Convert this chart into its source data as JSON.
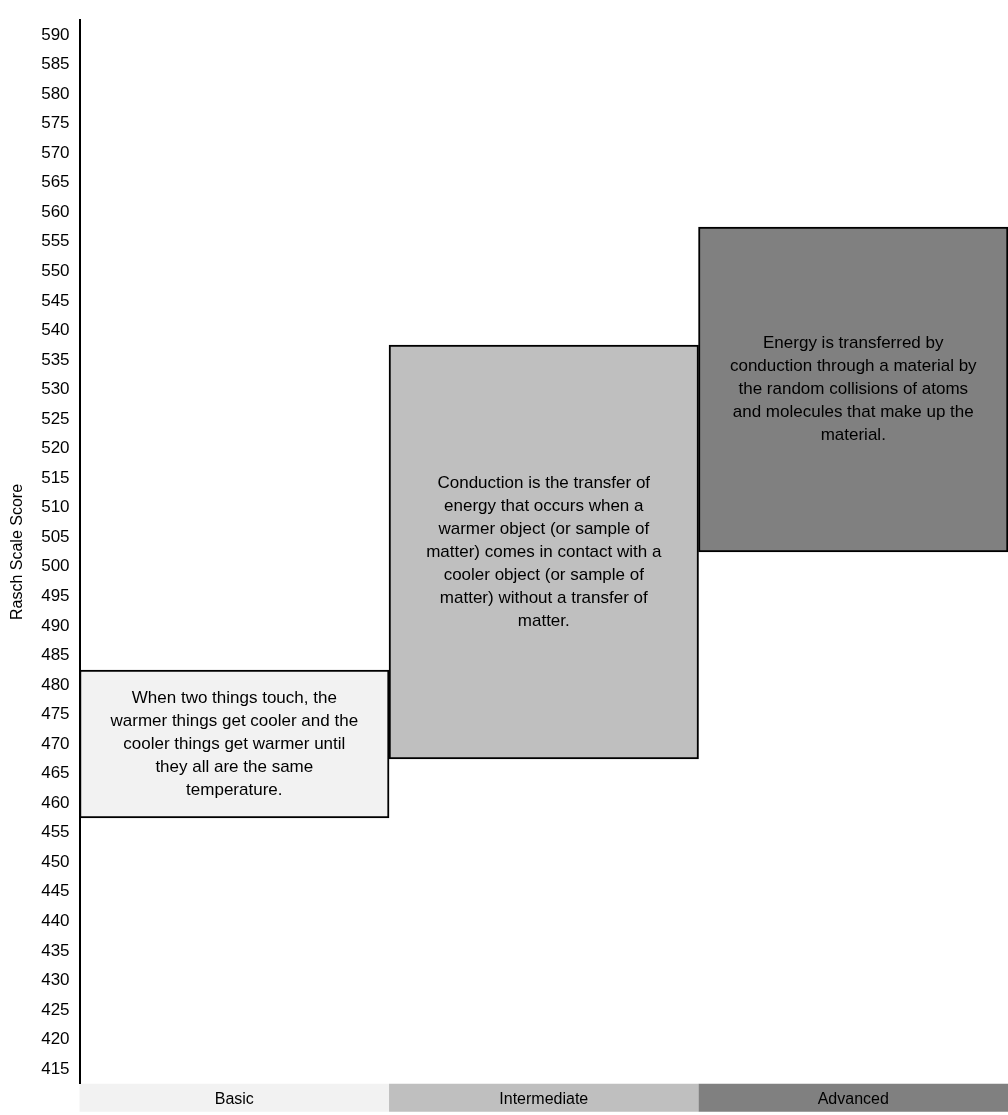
{
  "chart_data": {
    "type": "bar",
    "ylabel": "Rasch Scale Score",
    "categories": [
      "Basic",
      "Intermediate",
      "Advanced"
    ],
    "base": [
      457.5,
      467.5,
      502.5
    ],
    "values": [
      25,
      70,
      55
    ],
    "colors": [
      "#f2f2f2",
      "#bfbfbf",
      "#808080"
    ],
    "ylim": [
      412.5,
      592.5
    ],
    "yticks": [
      415,
      420,
      425,
      430,
      435,
      440,
      445,
      450,
      455,
      460,
      465,
      470,
      475,
      480,
      485,
      490,
      495,
      500,
      505,
      510,
      515,
      520,
      525,
      530,
      535,
      540,
      545,
      550,
      555,
      560,
      565,
      570,
      575,
      580,
      585,
      590
    ],
    "annotations": [
      "When two things touch, the warmer things get cooler and the cooler things get warmer until they all are the same temperature.",
      "Conduction is the transfer of energy that occurs when a warmer object (or sample of matter) comes in contact with a cooler object (or sample of matter) without a transfer of matter.",
      "Energy is transferred by conduction through a material by the random collisions of atoms and molecules that make up the material."
    ]
  }
}
